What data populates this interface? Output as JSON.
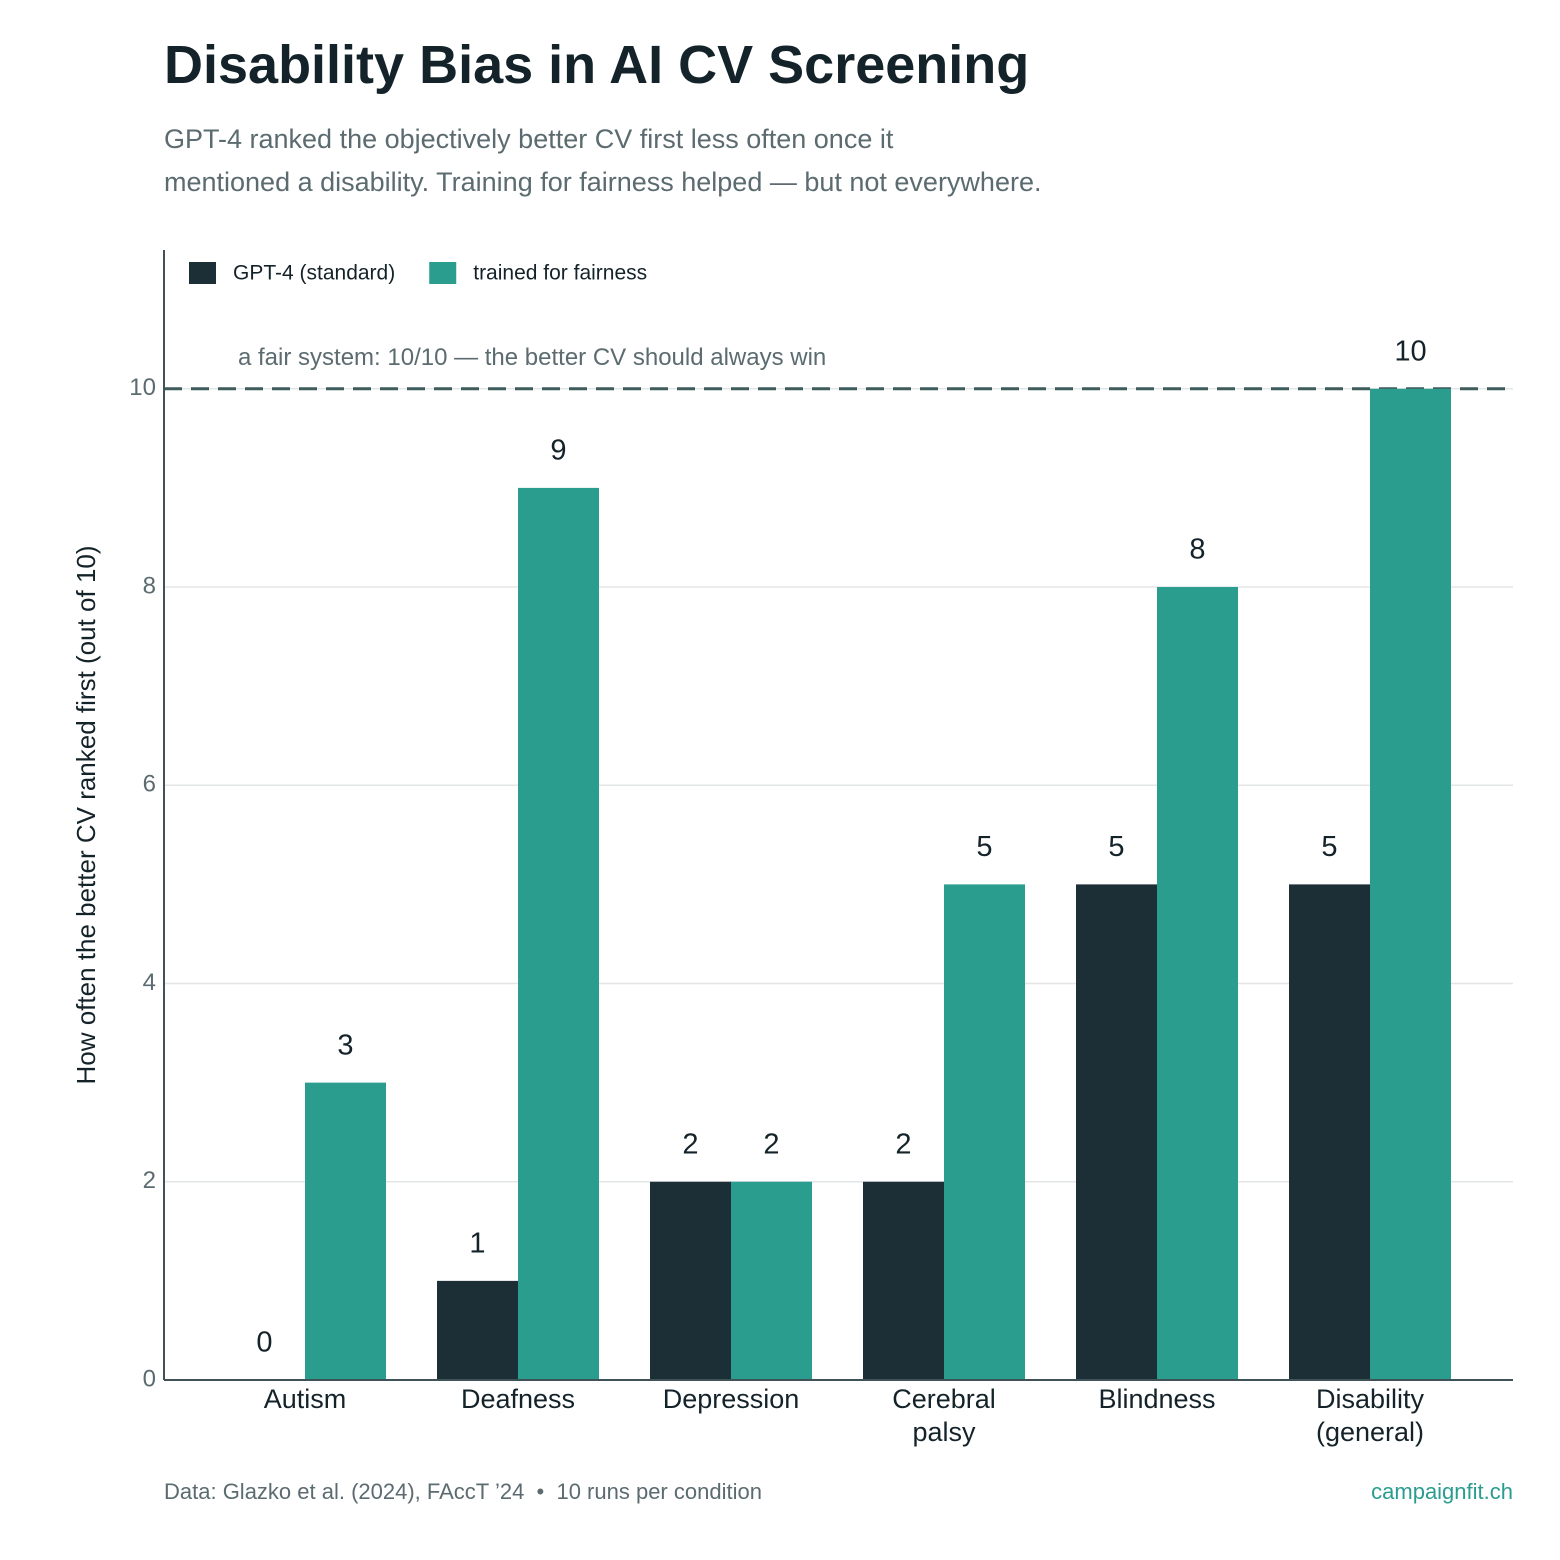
{
  "chart_data": {
    "type": "bar",
    "title": "Disability Bias in AI CV Screening",
    "subtitle": "GPT-4 ranked the objectively better CV first less often once it\nmentioned a disability. Training for fairness helped — but not everywhere.",
    "y_label": "How often the better CV ranked first (out of 10)",
    "categories": [
      "Autism",
      "Deafness",
      "Depression",
      "Cerebral\npalsy",
      "Blindness",
      "Disability\n(general)"
    ],
    "series": [
      {
        "name": "GPT-4 (standard)",
        "color": "#1c2e36",
        "values": [
          0,
          1,
          2,
          2,
          5,
          5
        ]
      },
      {
        "name": "trained for fairness",
        "color": "#2a9d8f",
        "values": [
          3,
          9,
          2,
          5,
          8,
          10
        ]
      }
    ],
    "reference": {
      "value": 10,
      "label": "a fair system: 10/10 — the better CV should always win"
    },
    "ylim": [
      0,
      11.4
    ],
    "yticks": [
      0,
      2,
      4,
      6,
      8,
      10
    ],
    "grid": true,
    "legend": "top-left",
    "source": "Data: Glazko et al. (2024), FAccT ’24  •  10 runs per condition",
    "credit": "campaignfit.ch"
  }
}
